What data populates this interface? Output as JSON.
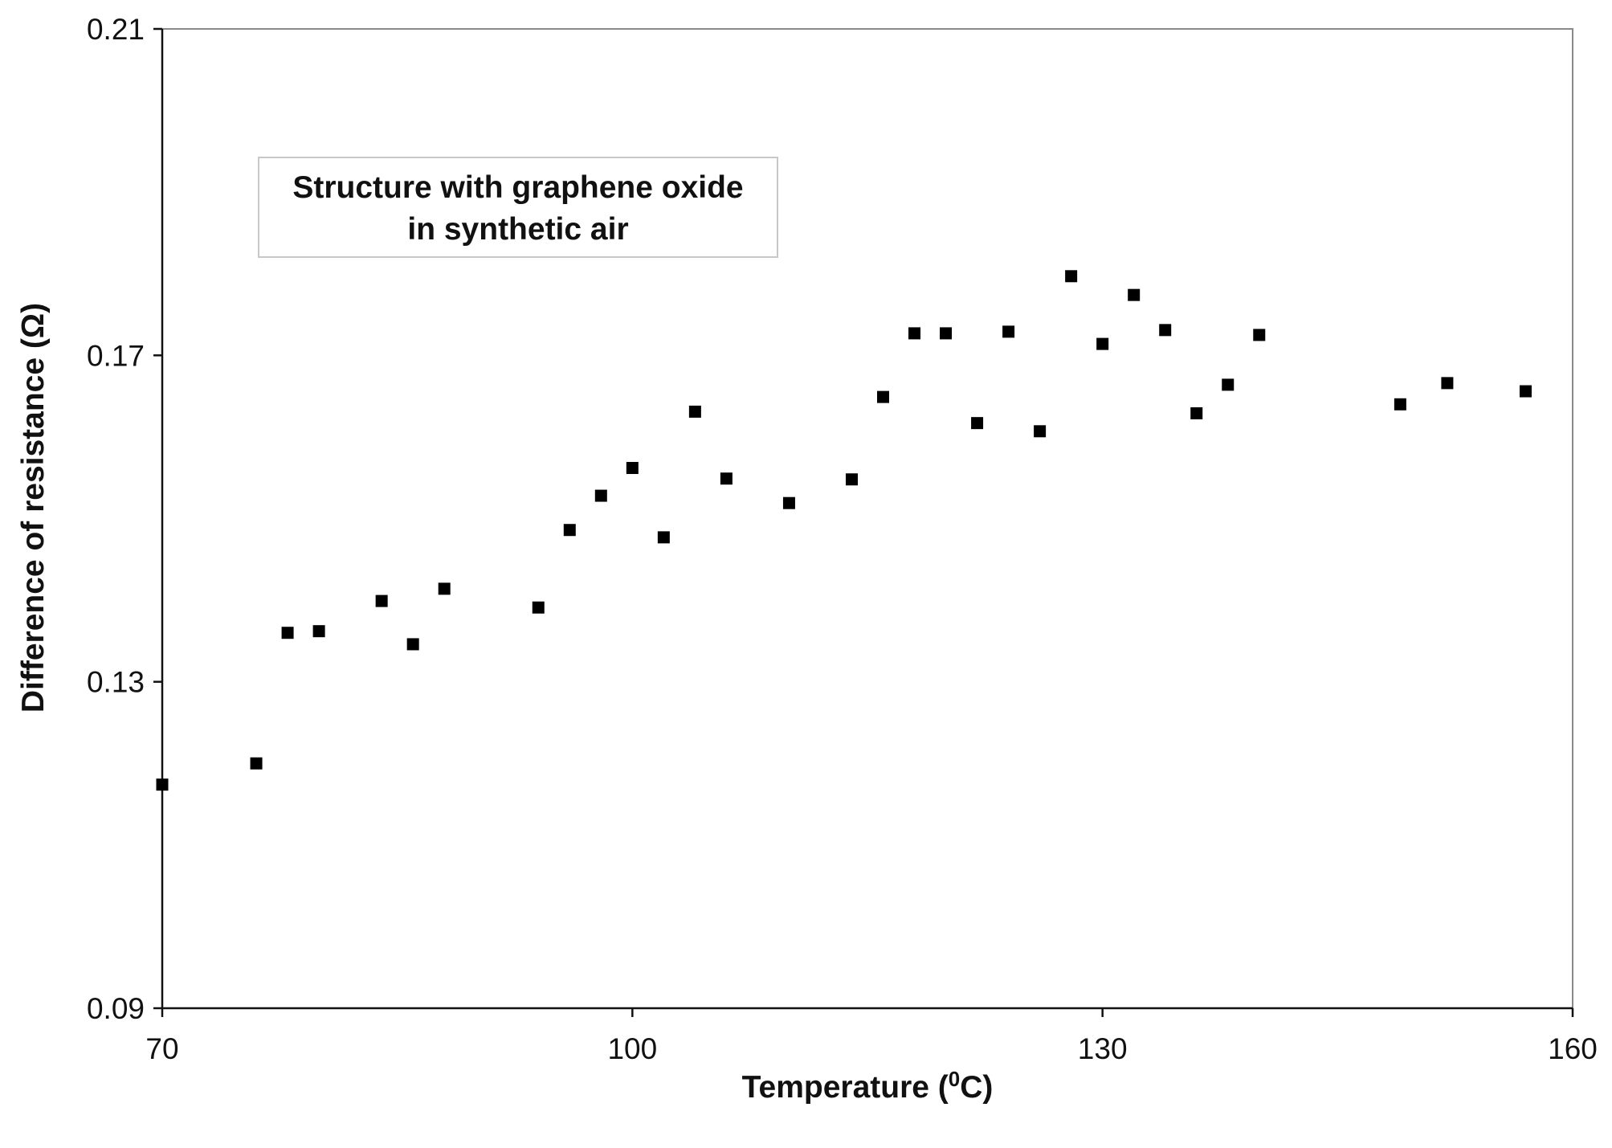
{
  "chart_data": {
    "type": "scatter",
    "xlabel": "Temperature (",
    "xlabel_sup": "0",
    "xlabel_unit": "C)",
    "ylabel": "Difference of resistance (Ω)",
    "xlim": [
      70,
      160
    ],
    "ylim": [
      0.09,
      0.21
    ],
    "xticks": [
      70,
      100,
      130,
      160
    ],
    "xtick_labels": [
      "70",
      "100",
      "130",
      "160"
    ],
    "yticks": [
      0.09,
      0.13,
      0.17,
      0.21
    ],
    "ytick_labels": [
      "0.09",
      "0.13",
      "0.17",
      "0.21"
    ],
    "grid": false,
    "annotation_lines": [
      "Structure with graphene oxide",
      "in synthetic air"
    ],
    "marker": "square",
    "marker_color": "#000000",
    "points": [
      {
        "x": 70,
        "y": 0.1174
      },
      {
        "x": 76,
        "y": 0.12
      },
      {
        "x": 78,
        "y": 0.136
      },
      {
        "x": 80,
        "y": 0.1362
      },
      {
        "x": 84,
        "y": 0.1399
      },
      {
        "x": 86,
        "y": 0.1346
      },
      {
        "x": 88,
        "y": 0.1414
      },
      {
        "x": 94,
        "y": 0.1391
      },
      {
        "x": 96,
        "y": 0.1486
      },
      {
        "x": 98,
        "y": 0.1528
      },
      {
        "x": 100,
        "y": 0.1562
      },
      {
        "x": 102,
        "y": 0.1477
      },
      {
        "x": 104,
        "y": 0.1631
      },
      {
        "x": 106,
        "y": 0.1549
      },
      {
        "x": 110,
        "y": 0.1519
      },
      {
        "x": 114,
        "y": 0.1548
      },
      {
        "x": 116,
        "y": 0.1649
      },
      {
        "x": 118,
        "y": 0.1727
      },
      {
        "x": 120,
        "y": 0.1727
      },
      {
        "x": 122,
        "y": 0.1617
      },
      {
        "x": 124,
        "y": 0.1729
      },
      {
        "x": 126,
        "y": 0.1607
      },
      {
        "x": 128,
        "y": 0.1797
      },
      {
        "x": 130,
        "y": 0.1714
      },
      {
        "x": 132,
        "y": 0.1774
      },
      {
        "x": 134,
        "y": 0.1731
      },
      {
        "x": 136,
        "y": 0.1629
      },
      {
        "x": 138,
        "y": 0.1664
      },
      {
        "x": 140,
        "y": 0.1725
      },
      {
        "x": 149,
        "y": 0.164
      },
      {
        "x": 152,
        "y": 0.1666
      },
      {
        "x": 157,
        "y": 0.1656
      }
    ]
  }
}
